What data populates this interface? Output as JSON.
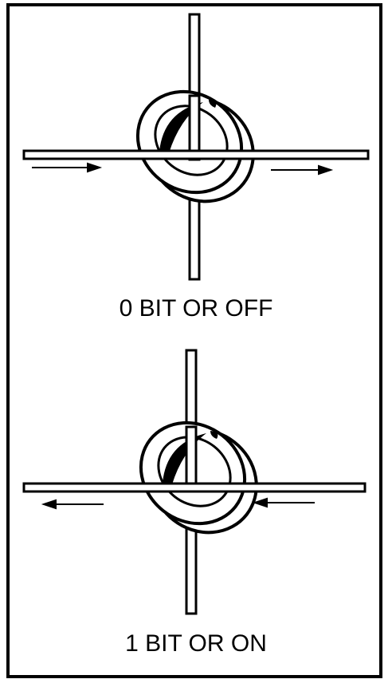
{
  "diagram": {
    "ink_color": "#000000",
    "background_color": "#ffffff",
    "cores": [
      {
        "caption": "0 BIT OR OFF",
        "current_direction": "outward"
      },
      {
        "caption": "1 BIT OR ON",
        "current_direction": "inward"
      }
    ]
  }
}
